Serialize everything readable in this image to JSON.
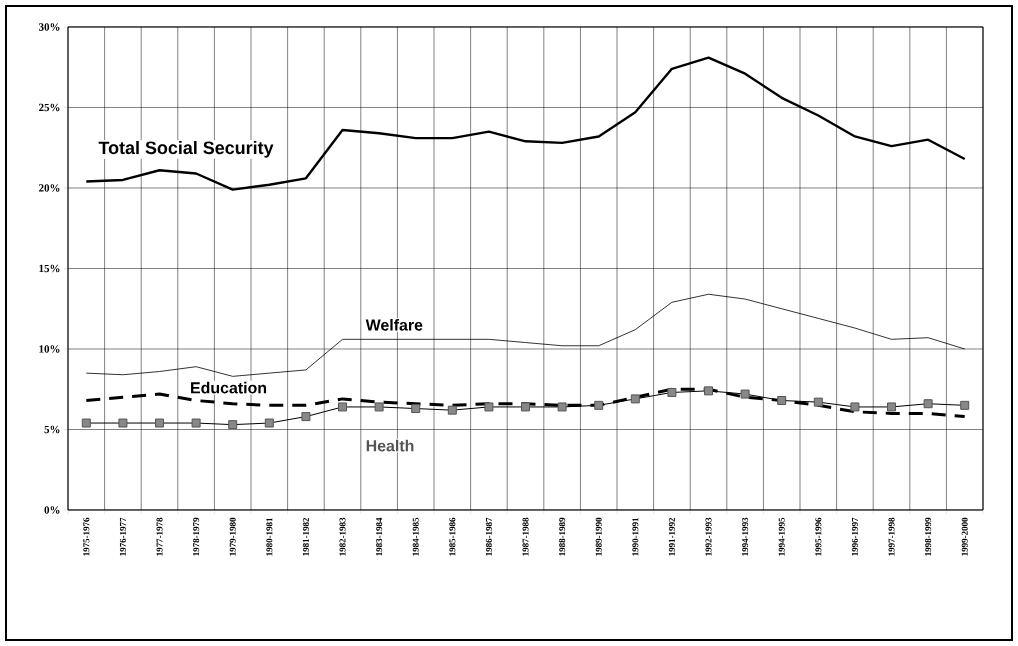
{
  "chart_data": {
    "type": "line",
    "categories": [
      "1975-1976",
      "1976-1977",
      "1977-1978",
      "1978-1979",
      "1979-1980",
      "1980-1981",
      "1981-1982",
      "1982-1983",
      "1983-1984",
      "1984-1985",
      "1985-1986",
      "1986-1987",
      "1987-1988",
      "1988-1989",
      "1989-1990",
      "1990-1991",
      "1991-1992",
      "1992-1993",
      "1994-1993",
      "1994-1995",
      "1995-1996",
      "1996-1997",
      "1997-1998",
      "1998-1999",
      "1999-2000"
    ],
    "series": [
      {
        "name": "Total Social Security",
        "color": "#000000",
        "line_style": "solid",
        "marker": "none",
        "values": [
          20.4,
          20.5,
          21.1,
          20.9,
          19.9,
          20.2,
          20.6,
          23.6,
          23.4,
          23.1,
          23.1,
          23.5,
          22.9,
          22.8,
          23.2,
          24.7,
          27.4,
          28.1,
          27.1,
          25.6,
          24.5,
          23.2,
          22.6,
          23.0,
          21.8
        ]
      },
      {
        "name": "Welfare",
        "color": "#000000",
        "line_style": "solid",
        "marker": "none",
        "values": [
          8.5,
          8.4,
          8.6,
          8.9,
          8.3,
          8.5,
          8.7,
          10.6,
          10.6,
          10.6,
          10.6,
          10.6,
          10.4,
          10.2,
          10.2,
          11.2,
          12.9,
          13.4,
          13.1,
          12.5,
          11.9,
          11.3,
          10.6,
          10.7,
          10.0
        ]
      },
      {
        "name": "Education",
        "color": "#000000",
        "line_style": "dashed",
        "marker": "none",
        "values": [
          6.8,
          7.0,
          7.2,
          6.8,
          6.6,
          6.5,
          6.5,
          6.9,
          6.7,
          6.6,
          6.5,
          6.6,
          6.6,
          6.5,
          6.5,
          7.0,
          7.5,
          7.5,
          7.0,
          6.8,
          6.5,
          6.1,
          6.0,
          6.0,
          5.8
        ]
      },
      {
        "name": "Health",
        "color": "#555555",
        "line_style": "solid",
        "marker": "square",
        "values": [
          5.4,
          5.4,
          5.4,
          5.4,
          5.3,
          5.4,
          5.8,
          6.4,
          6.4,
          6.3,
          6.2,
          6.4,
          6.4,
          6.4,
          6.5,
          6.9,
          7.3,
          7.4,
          7.2,
          6.8,
          6.7,
          6.4,
          6.4,
          6.6,
          6.5
        ]
      }
    ],
    "ylim": [
      0,
      30
    ],
    "yticks": [
      {
        "value": 0,
        "label": "0%"
      },
      {
        "value": 5,
        "label": "5%"
      },
      {
        "value": 10,
        "label": "10%"
      },
      {
        "value": 15,
        "label": "15%"
      },
      {
        "value": 20,
        "label": "20%"
      },
      {
        "value": 25,
        "label": "25%"
      },
      {
        "value": 30,
        "label": "30%"
      }
    ],
    "grid": true
  }
}
